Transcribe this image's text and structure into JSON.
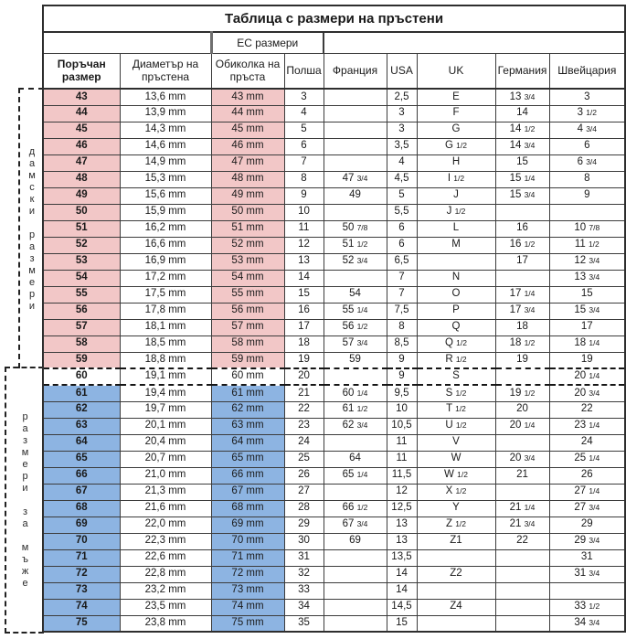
{
  "page": {
    "title": "Таблица с размери на пръстени",
    "ec_header": "ЕС размери",
    "side_labels": {
      "women": "дамски размери",
      "men": "размери за мъже"
    }
  },
  "colors": {
    "women_fill": "#F2C7C7",
    "men_fill": "#8DB4E2",
    "neutral_fill": "#FFFFFF",
    "border": "#3C3C3C"
  },
  "chart_data": {
    "type": "table",
    "title": "Таблица с размери на пръстени",
    "columns": [
      "Поръчан размер",
      "Диаметър на пръстена",
      "Обиколка на пръста",
      "Полша",
      "Франция",
      "USA",
      "UK",
      "Германия",
      "Швейцария"
    ],
    "column_groups": [
      {
        "label": "ЕС размери",
        "spans": [
          "Обиколка на пръста",
          "Полша"
        ]
      }
    ],
    "row_groups": [
      {
        "label": "дамски размери",
        "rows": "43-59",
        "fill": "#F2C7C7"
      },
      {
        "label": "",
        "rows": "60",
        "fill": "#FFFFFF"
      },
      {
        "label": "размери за мъже",
        "rows": "61-75",
        "fill": "#8DB4E2"
      }
    ],
    "rows": [
      [
        "43",
        "13,6 mm",
        "43 mm",
        "3",
        "",
        "2,5",
        "E",
        "13 3/4",
        "3"
      ],
      [
        "44",
        "13,9 mm",
        "44 mm",
        "4",
        "",
        "3",
        "F",
        "14",
        "3 1/2"
      ],
      [
        "45",
        "14,3 mm",
        "45 mm",
        "5",
        "",
        "3",
        "G",
        "14 1/2",
        "4 3/4"
      ],
      [
        "46",
        "14,6 mm",
        "46 mm",
        "6",
        "",
        "3,5",
        "G 1/2",
        "14 3/4",
        "6"
      ],
      [
        "47",
        "14,9 mm",
        "47 mm",
        "7",
        "",
        "4",
        "H",
        "15",
        "6 3/4"
      ],
      [
        "48",
        "15,3 mm",
        "48 mm",
        "8",
        "47 3/4",
        "4,5",
        "I 1/2",
        "15 1/4",
        "8"
      ],
      [
        "49",
        "15,6 mm",
        "49 mm",
        "9",
        "49",
        "5",
        "J",
        "15 3/4",
        "9"
      ],
      [
        "50",
        "15,9 mm",
        "50 mm",
        "10",
        "",
        "5,5",
        "J 1/2",
        "",
        ""
      ],
      [
        "51",
        "16,2 mm",
        "51 mm",
        "11",
        "50 7/8",
        "6",
        "L",
        "16",
        "10 7/8"
      ],
      [
        "52",
        "16,6 mm",
        "52 mm",
        "12",
        "51 1/2",
        "6",
        "M",
        "16 1/2",
        "11 1/2"
      ],
      [
        "53",
        "16,9 mm",
        "53 mm",
        "13",
        "52 3/4",
        "6,5",
        "",
        "17",
        "12 3/4"
      ],
      [
        "54",
        "17,2 mm",
        "54 mm",
        "14",
        "",
        "7",
        "N",
        "",
        "13 3/4"
      ],
      [
        "55",
        "17,5 mm",
        "55 mm",
        "15",
        "54",
        "7",
        "O",
        "17 1/4",
        "15"
      ],
      [
        "56",
        "17,8 mm",
        "56 mm",
        "16",
        "55 1/4",
        "7,5",
        "P",
        "17 3/4",
        "15 3/4"
      ],
      [
        "57",
        "18,1 mm",
        "57 mm",
        "17",
        "56 1/2",
        "8",
        "Q",
        "18",
        "17"
      ],
      [
        "58",
        "18,5 mm",
        "58 mm",
        "18",
        "57 3/4",
        "8,5",
        "Q 1/2",
        "18 1/2",
        "18 1/4"
      ],
      [
        "59",
        "18,8 mm",
        "59 mm",
        "19",
        "59",
        "9",
        "R 1/2",
        "19",
        "19"
      ],
      [
        "60",
        "19,1 mm",
        "60 mm",
        "20",
        "",
        "9",
        "S",
        "",
        "20 1/4"
      ],
      [
        "61",
        "19,4 mm",
        "61 mm",
        "21",
        "60 1/4",
        "9,5",
        "S 1/2",
        "19 1/2",
        "20 3/4"
      ],
      [
        "62",
        "19,7 mm",
        "62 mm",
        "22",
        "61 1/2",
        "10",
        "T 1/2",
        "20",
        "22"
      ],
      [
        "63",
        "20,1 mm",
        "63 mm",
        "23",
        "62 3/4",
        "10,5",
        "U 1/2",
        "20 1/4",
        "23 1/4"
      ],
      [
        "64",
        "20,4 mm",
        "64 mm",
        "24",
        "",
        "11",
        "V",
        "",
        "24"
      ],
      [
        "65",
        "20,7 mm",
        "65 mm",
        "25",
        "64",
        "11",
        "W",
        "20 3/4",
        "25 1/4"
      ],
      [
        "66",
        "21,0 mm",
        "66 mm",
        "26",
        "65 1/4",
        "11,5",
        "W 1/2",
        "21",
        "26"
      ],
      [
        "67",
        "21,3 mm",
        "67 mm",
        "27",
        "",
        "12",
        "X 1/2",
        "",
        "27 1/4"
      ],
      [
        "68",
        "21,6 mm",
        "68 mm",
        "28",
        "66 1/2",
        "12,5",
        "Y",
        "21 1/4",
        "27 3/4"
      ],
      [
        "69",
        "22,0 mm",
        "69 mm",
        "29",
        "67 3/4",
        "13",
        "Z 1/2",
        "21 3/4",
        "29"
      ],
      [
        "70",
        "22,3 mm",
        "70 mm",
        "30",
        "69",
        "13",
        "Z1",
        "22",
        "29 3/4"
      ],
      [
        "71",
        "22,6 mm",
        "71 mm",
        "31",
        "",
        "13,5",
        "",
        "",
        "31"
      ],
      [
        "72",
        "22,8 mm",
        "72 mm",
        "32",
        "",
        "14",
        "Z2",
        "",
        "31 3/4"
      ],
      [
        "73",
        "23,2 mm",
        "73 mm",
        "33",
        "",
        "14",
        "",
        "",
        ""
      ],
      [
        "74",
        "23,5 mm",
        "74 mm",
        "34",
        "",
        "14,5",
        "Z4",
        "",
        "33 1/2"
      ],
      [
        "75",
        "23,8 mm",
        "75 mm",
        "35",
        "",
        "15",
        "",
        "",
        "34 3/4"
      ]
    ]
  }
}
